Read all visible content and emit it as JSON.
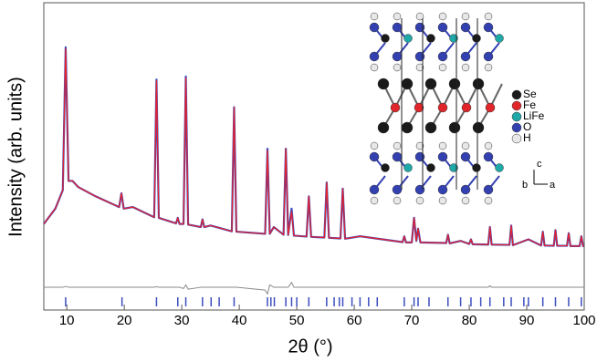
{
  "chart_data": {
    "type": "line",
    "ylabel": "Intensity (arb. units)",
    "xlabel": "2θ (°)",
    "xlim": [
      6,
      100
    ],
    "ylim": [
      0,
      100
    ],
    "xticks": [
      10,
      20,
      30,
      40,
      50,
      60,
      70,
      80,
      90,
      100
    ],
    "x": [
      6,
      8,
      9.3,
      9.8,
      10.3,
      11,
      12,
      15,
      19.1,
      19.5,
      19.9,
      21.5,
      25.2,
      25.6,
      26,
      29,
      29.3,
      29.6,
      30.3,
      30.7,
      31.1,
      33.3,
      33.6,
      33.9,
      35,
      38.7,
      39.1,
      39.5,
      44.5,
      44.9,
      45.3,
      46,
      47.7,
      48.1,
      48.5,
      49.1,
      49.5,
      51.7,
      52.1,
      52.5,
      54.8,
      55.2,
      55.6,
      57.6,
      58,
      58.4,
      61,
      68.4,
      68.7,
      69,
      70,
      70.4,
      70.8,
      71.1,
      71.5,
      76,
      76.3,
      76.6,
      78.5,
      80,
      80.3,
      80.6,
      83.3,
      83.6,
      83.9,
      87,
      87.3,
      87.6,
      90.3,
      92.5,
      92.8,
      93.1,
      94.7,
      95,
      95.3,
      97,
      97.3,
      97.6,
      99.2,
      99.5,
      99.8,
      100
    ],
    "series": [
      {
        "color": "#3b4dbf",
        "width": 2.2,
        "values": [
          28,
          33,
          39,
          85.5,
          42,
          42,
          40,
          37,
          33.5,
          38,
          33,
          33.5,
          30.2,
          75,
          30,
          28.2,
          30,
          28,
          28,
          76,
          27.8,
          27,
          29.5,
          27,
          27.5,
          25.6,
          66,
          25.5,
          24.8,
          52.5,
          24.8,
          27,
          24.5,
          52.5,
          24.4,
          33,
          24.2,
          23.9,
          37,
          23.8,
          23.6,
          41.5,
          23.5,
          23.3,
          39.5,
          23.2,
          24,
          22.1,
          24,
          22,
          22,
          30,
          22.5,
          26.5,
          22,
          21.8,
          24.5,
          21.7,
          22.5,
          21.5,
          23,
          21.4,
          21.3,
          27,
          21.3,
          21.2,
          27.5,
          21.1,
          23,
          21,
          25.5,
          21,
          20.9,
          26,
          20.9,
          20.9,
          25,
          20.8,
          20.8,
          24,
          20.8,
          20.8
        ]
      },
      {
        "color": "#e8202a",
        "width": 1.2,
        "values": [
          28,
          33,
          39,
          85,
          42,
          42,
          40,
          37,
          33.5,
          38,
          33,
          33.5,
          30.2,
          74.6,
          30,
          28.2,
          30,
          28,
          28,
          75.5,
          27.8,
          27,
          29.5,
          27,
          27.5,
          25.6,
          66,
          25.5,
          24.8,
          52,
          24.8,
          27,
          24.5,
          52.5,
          24.4,
          32,
          24.2,
          23.9,
          37,
          23.8,
          23.6,
          41.5,
          23.5,
          23.3,
          39.5,
          23.2,
          24,
          22.1,
          24,
          22,
          22,
          30,
          22.5,
          26.5,
          22,
          21.8,
          24.5,
          21.7,
          22.5,
          21.5,
          23,
          21.4,
          21.3,
          27,
          21.3,
          21.2,
          27.5,
          21.1,
          23,
          21,
          25.5,
          21,
          20.9,
          26,
          20.9,
          20.9,
          25,
          20.8,
          20.8,
          24,
          20.8,
          20.8
        ]
      },
      {
        "color": "#8a8a8a",
        "width": 1,
        "values": [
          7.4,
          7.4,
          7.4,
          7.7,
          7.4,
          7.4,
          7.4,
          7.4,
          7.4,
          7.4,
          7.4,
          7.4,
          7.4,
          7.6,
          7.4,
          7.4,
          7.4,
          7.4,
          7.0,
          8.2,
          6.8,
          7.4,
          7.4,
          7.4,
          7.4,
          7.4,
          7.4,
          7.4,
          6.5,
          5.2,
          8.2,
          7.4,
          7.4,
          7.4,
          7.4,
          9,
          7.4,
          7.4,
          7.4,
          7.4,
          7.4,
          7.4,
          7.4,
          7.4,
          7.4,
          7.4,
          7.4,
          7.4,
          7.4,
          7.4,
          7.4,
          7.4,
          7.4,
          7.4,
          7.4,
          7.4,
          7.4,
          7.4,
          7.4,
          7.4,
          7.4,
          7.4,
          7.4,
          7.9,
          7.4,
          7.4,
          7.4,
          7.4,
          7.4,
          7.4,
          7.4,
          7.4,
          7.4,
          7.4,
          7.4,
          7.4,
          7.4,
          7.4,
          7.4,
          7.4,
          7.4,
          7.4
        ]
      }
    ],
    "reflections": {
      "color": "#3b4dbf",
      "x": [
        9.8,
        19.6,
        25.6,
        29.3,
        30.7,
        33.6,
        35.1,
        36.5,
        39.1,
        44.9,
        45.5,
        46.1,
        48.1,
        49.1,
        50,
        52.1,
        55.2,
        56.5,
        57.4,
        58,
        59.6,
        61,
        62.5,
        64,
        68.7,
        70.4,
        71.1,
        73,
        76.3,
        78.5,
        80.3,
        82,
        83.6,
        86,
        87.3,
        89.5,
        90.3,
        92.8,
        95,
        97.3,
        99.5
      ]
    },
    "inset": {
      "legend": [
        {
          "name": "Se",
          "color": "#1a1a1a"
        },
        {
          "name": "Fe",
          "color": "#e0262b"
        },
        {
          "name": "LiFe",
          "color": "#1fa8a8"
        },
        {
          "name": "O",
          "color": "#3340b0"
        },
        {
          "name": "H",
          "color": "#e8e8e8"
        }
      ],
      "axes": [
        "c",
        "b",
        "a"
      ]
    }
  }
}
